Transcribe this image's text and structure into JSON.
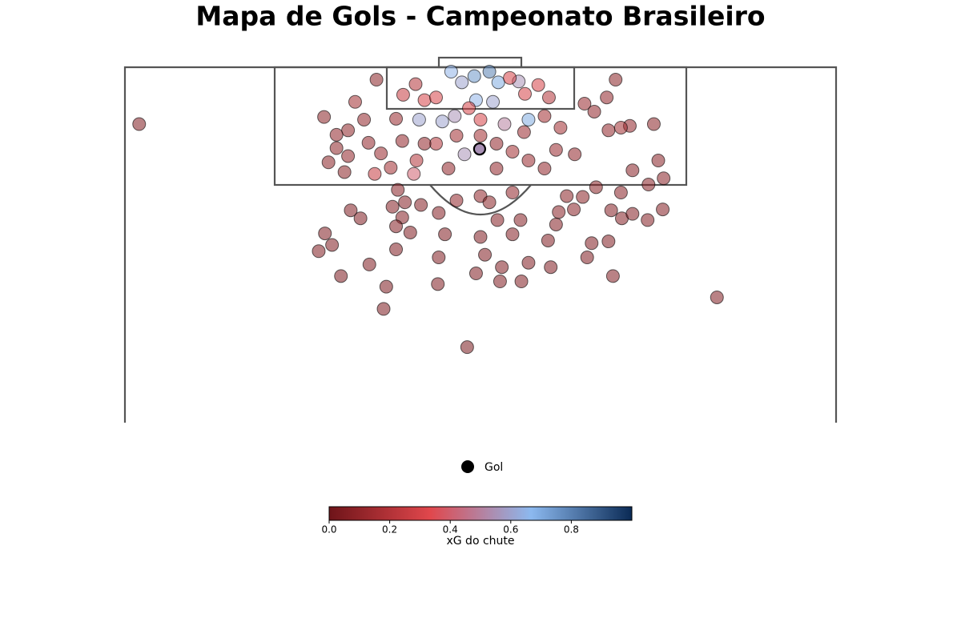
{
  "chart_data": {
    "type": "scatter",
    "title": "Mapa de Gols - Campeonato Brasileiro",
    "xlim": [
      0,
      80
    ],
    "ylim": [
      80,
      120
    ],
    "colormap": [
      "#6e1419",
      "#e0474c",
      "#8cb9ef",
      "#0a2a55"
    ],
    "x": [
      1.6,
      66.6,
      38.5,
      29.1,
      29.4,
      24.3,
      21.8,
      22.5,
      23.3,
      25.4,
      26.5,
      27.5,
      30.5,
      32.1,
      35.2,
      35.3,
      36.0,
      39.5,
      40.0,
      40.5,
      42.2,
      42.4,
      44.6,
      45.4,
      47.9,
      47.6,
      52.0,
      52.5,
      54.4,
      54.9,
      55.9,
      58.8,
      60.5,
      57.1,
      58.9,
      60.6,
      60.0,
      57.1,
      55.8,
      54.7,
      53.0,
      51.5,
      50.5,
      48.8,
      49.7,
      48.5,
      44.5,
      43.6,
      41.9,
      35.3,
      33.3,
      31.5,
      30.7,
      30.1,
      31.2,
      30.5,
      24.7,
      22.9,
      23.8,
      22.4,
      25.1,
      25.9,
      28.3,
      27.4,
      28.8,
      28.1,
      29.9,
      32.5,
      32.8,
      31.2,
      30.5,
      32.7,
      31.3,
      33.7,
      35.0,
      36.7,
      37.9,
      39.3,
      41.0,
      42.0,
      44.3,
      43.3,
      45.0,
      46.5,
      47.7,
      39.5,
      41.4,
      38.7,
      37.1,
      35.7,
      33.1,
      40.0,
      42.7,
      45.4,
      47.2,
      49.0,
      51.7,
      54.2,
      55.2,
      52.8,
      54.4,
      56.8,
      59.5,
      55.8,
      50.6,
      48.5,
      45.4,
      43.6,
      41.8,
      38.2,
      36.4,
      35.0,
      37.3,
      33.7,
      40.0,
      41.8,
      44.9,
      47.2,
      43.6,
      40.0,
      37.3,
      41.0,
      25.1,
      23.8,
      26.9
    ],
    "y": [
      113.6,
      94.1,
      88.5,
      92.8,
      95.3,
      96.5,
      99.3,
      101.3,
      100.0,
      103.9,
      103.0,
      97.8,
      99.5,
      101.4,
      95.6,
      98.6,
      101.2,
      96.8,
      100.9,
      98.9,
      95.9,
      97.5,
      95.9,
      98.0,
      97.5,
      100.5,
      98.6,
      100.2,
      100.4,
      96.5,
      103.0,
      102.8,
      104.0,
      103.5,
      106.8,
      107.5,
      109.5,
      108.4,
      105.9,
      103.9,
      106.5,
      105.4,
      104.0,
      103.7,
      105.5,
      102.3,
      102.8,
      101.2,
      102.8,
      103.6,
      104.5,
      104.8,
      106.2,
      104.3,
      103.1,
      102.1,
      108.2,
      109.3,
      110.9,
      114.4,
      112.9,
      116.1,
      118.6,
      111.5,
      110.3,
      108.0,
      108.7,
      108.0,
      109.5,
      111.7,
      114.2,
      118.1,
      116.9,
      116.3,
      116.6,
      119.5,
      118.3,
      119.0,
      119.5,
      118.3,
      118.4,
      118.8,
      117.0,
      118.0,
      116.6,
      116.3,
      116.1,
      115.4,
      114.5,
      113.9,
      114.1,
      114.1,
      113.6,
      114.1,
      114.5,
      113.2,
      115.9,
      116.6,
      118.6,
      115.0,
      112.9,
      113.4,
      113.6,
      113.2,
      110.2,
      110.7,
      109.5,
      110.5,
      108.6,
      110.2,
      108.6,
      111.4,
      112.3,
      111.4,
      112.3,
      111.4,
      112.7,
      108.6,
      105.9,
      105.5,
      105.0,
      104.8,
      110.0,
      112.4,
      114.1
    ],
    "xg": [
      0.05,
      0.05,
      0.03,
      0.04,
      0.04,
      0.04,
      0.05,
      0.05,
      0.05,
      0.05,
      0.05,
      0.05,
      0.05,
      0.05,
      0.05,
      0.05,
      0.05,
      0.05,
      0.05,
      0.05,
      0.05,
      0.05,
      0.05,
      0.05,
      0.05,
      0.05,
      0.05,
      0.05,
      0.05,
      0.05,
      0.06,
      0.06,
      0.06,
      0.06,
      0.07,
      0.07,
      0.07,
      0.07,
      0.07,
      0.06,
      0.08,
      0.08,
      0.07,
      0.07,
      0.08,
      0.06,
      0.06,
      0.06,
      0.06,
      0.06,
      0.06,
      0.06,
      0.07,
      0.06,
      0.06,
      0.06,
      0.08,
      0.08,
      0.09,
      0.08,
      0.09,
      0.15,
      0.08,
      0.1,
      0.12,
      0.25,
      0.15,
      0.4,
      0.2,
      0.1,
      0.12,
      0.2,
      0.25,
      0.3,
      0.3,
      0.65,
      0.6,
      0.75,
      0.8,
      0.7,
      0.55,
      0.3,
      0.3,
      0.3,
      0.2,
      0.65,
      0.6,
      0.3,
      0.55,
      0.6,
      0.6,
      0.3,
      0.5,
      0.7,
      0.15,
      0.15,
      0.12,
      0.1,
      0.08,
      0.1,
      0.1,
      0.1,
      0.08,
      0.15,
      0.1,
      0.12,
      0.12,
      0.15,
      0.1,
      0.55,
      0.1,
      0.2,
      0.15,
      0.1,
      0.15,
      0.1,
      0.12,
      0.1,
      0.1,
      0.1,
      0.1,
      0.08,
      0.1,
      0.1,
      0.1
    ],
    "series": [
      {
        "name": "Gol",
        "color": "#000000",
        "x": [
          39.9
        ],
        "y": [
          110.8
        ],
        "xg": [
          0.55
        ]
      }
    ],
    "colorbar": {
      "label": "xG do chute",
      "lim": [
        0,
        1
      ],
      "ticks": [
        {
          "value": 0,
          "label": "0.0"
        },
        0.2,
        0.4,
        0.6,
        0.8
      ]
    }
  }
}
